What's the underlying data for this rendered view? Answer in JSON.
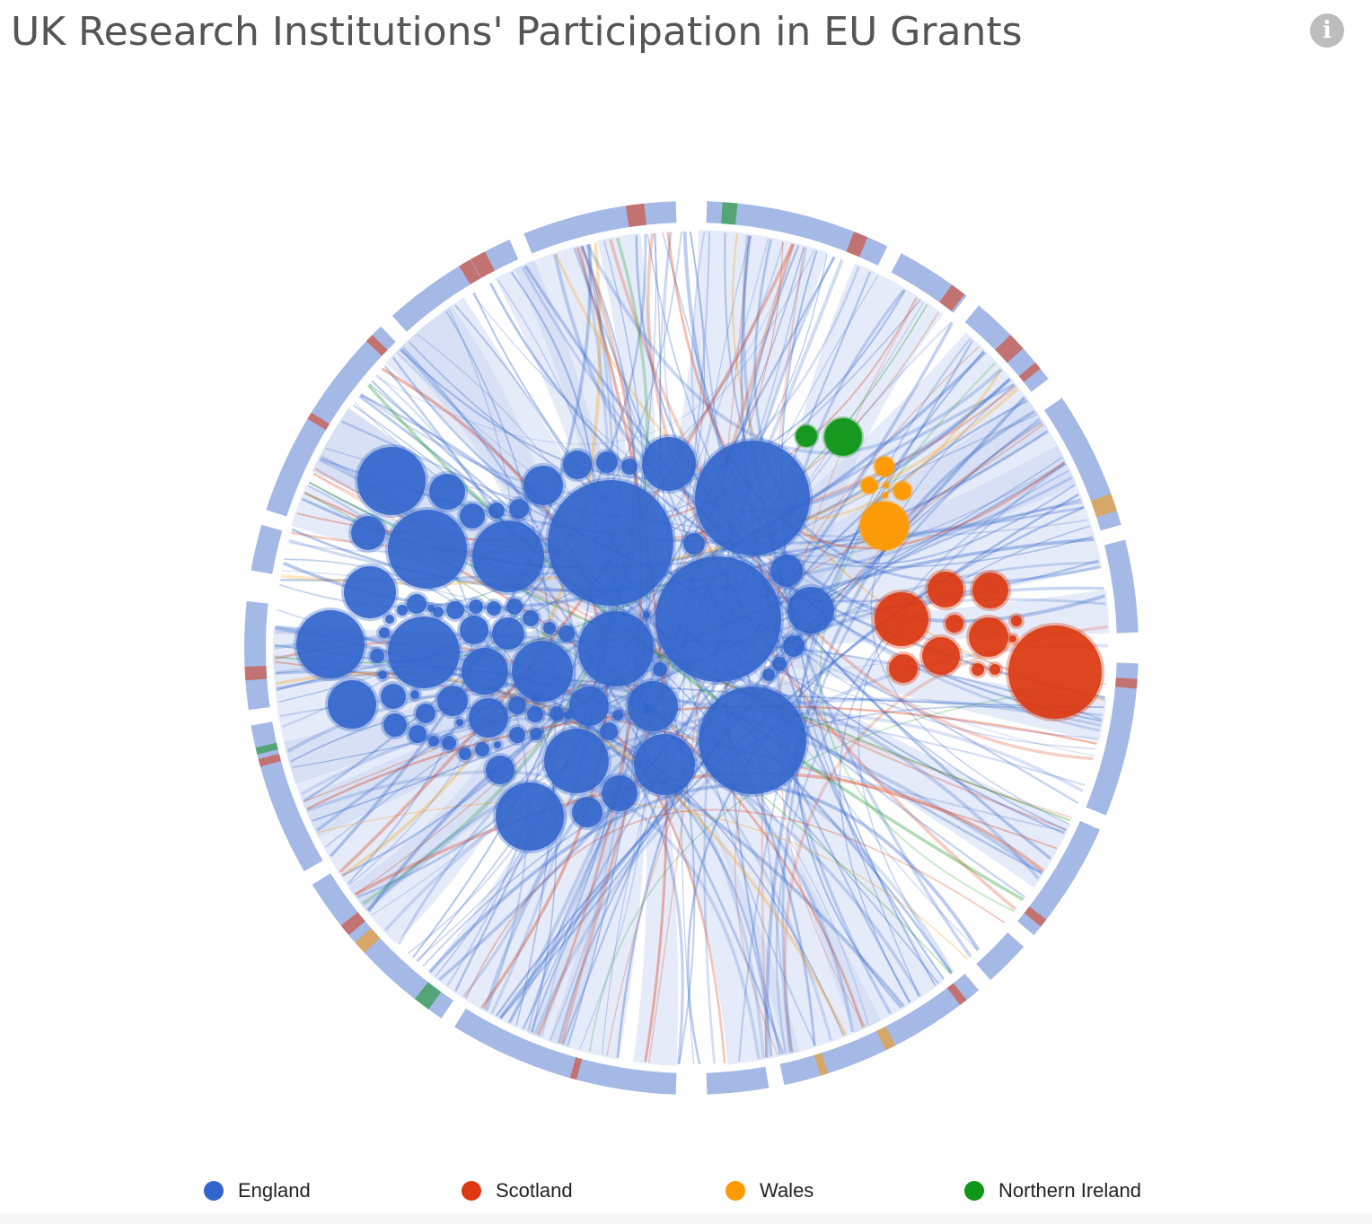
{
  "title": "UK Research Institutions' Participation in EU Grants",
  "info_icon": "info-icon",
  "legend": [
    {
      "label": "England",
      "color": "#3366cc"
    },
    {
      "label": "Scotland",
      "color": "#dc3912"
    },
    {
      "label": "Wales",
      "color": "#ff9900"
    },
    {
      "label": "Northern Ireland",
      "color": "#109618"
    }
  ],
  "colors": {
    "england": "#3366cc",
    "scotland": "#dc3912",
    "wales": "#ff9900",
    "northern_ireland": "#109618",
    "ring": "#a5b9e6",
    "ribbon": "#c5d3ef"
  }
}
